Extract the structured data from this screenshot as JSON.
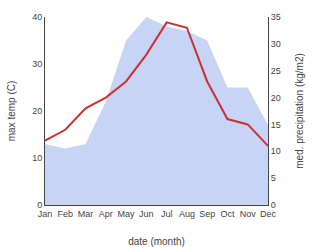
{
  "chart_data": {
    "type": "area",
    "categories": [
      "Jan",
      "Feb",
      "Mar",
      "Apr",
      "May",
      "Jun",
      "Jul",
      "Aug",
      "Sep",
      "Oct",
      "Nov",
      "Dec"
    ],
    "xlabel": "date (month)",
    "ylabel": "max temp (C)",
    "y2label": "med. precipitation (kg/m2)",
    "series": [
      {
        "type": "area",
        "color": "#c8d4f5",
        "values": [
          13,
          12,
          13,
          22,
          35,
          40,
          38,
          37,
          35,
          25,
          25,
          17
        ]
      },
      {
        "type": "line",
        "color": "#c83232",
        "axis": "y2",
        "values": [
          12,
          14,
          18,
          20,
          23,
          28,
          34,
          33,
          23,
          16,
          15,
          11
        ]
      }
    ],
    "ylim": [
      0,
      40
    ],
    "yticks": [
      0,
      10,
      20,
      30,
      40
    ],
    "y2lim": [
      0,
      35
    ],
    "y2ticks": [
      0,
      5,
      10,
      15,
      20,
      25,
      30,
      35
    ],
    "grid": false
  }
}
